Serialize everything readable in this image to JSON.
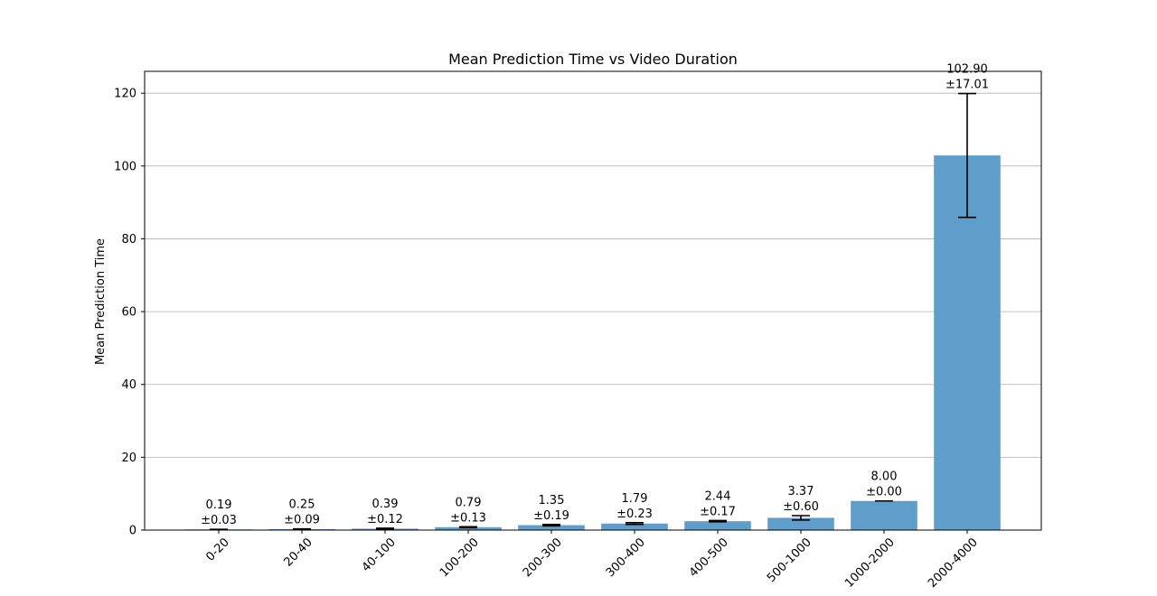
{
  "chart_data": {
    "type": "bar",
    "title": "Mean Prediction Time vs Video Duration",
    "xlabel": "",
    "ylabel": "Mean Prediction Time",
    "categories": [
      "0-20",
      "20-40",
      "40-100",
      "100-200",
      "200-300",
      "300-400",
      "400-500",
      "500-1000",
      "1000-2000",
      "2000-4000"
    ],
    "values": [
      0.19,
      0.25,
      0.39,
      0.79,
      1.35,
      1.79,
      2.44,
      3.37,
      8.0,
      102.9
    ],
    "errors": [
      0.03,
      0.09,
      0.12,
      0.13,
      0.19,
      0.23,
      0.17,
      0.6,
      0.0,
      17.01
    ],
    "value_labels": [
      "0.19",
      "0.25",
      "0.39",
      "0.79",
      "1.35",
      "1.79",
      "2.44",
      "3.37",
      "8.00",
      "102.90"
    ],
    "error_labels": [
      "±0.03",
      "±0.09",
      "±0.12",
      "±0.13",
      "±0.19",
      "±0.23",
      "±0.17",
      "±0.60",
      "±0.00",
      "±17.01"
    ],
    "ylim": [
      0,
      126
    ],
    "yticks": [
      0,
      20,
      40,
      60,
      80,
      100,
      120
    ],
    "grid": "y",
    "bar_color": "#5f9ecb",
    "error_color": "#000000"
  }
}
